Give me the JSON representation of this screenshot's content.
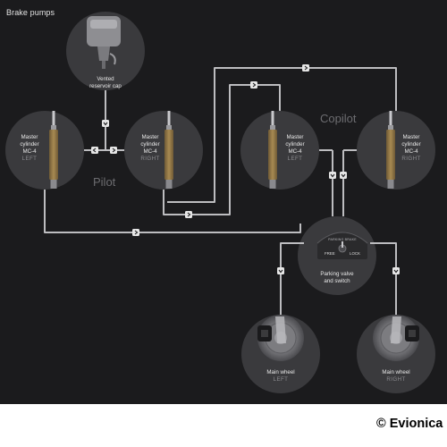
{
  "title": "Brake pumps",
  "groups": {
    "pilot": "Pilot",
    "copilot": "Copilot"
  },
  "reservoir": {
    "line1": "Vented",
    "line2": "reservoir cap"
  },
  "cylinders": [
    {
      "line1": "Master",
      "line2": "cylinder",
      "line3": "MC-4",
      "side": "LEFT"
    },
    {
      "line1": "Master",
      "line2": "cylinder",
      "line3": "MC-4",
      "side": "RIGHT"
    },
    {
      "line1": "Master",
      "line2": "cylinder",
      "line3": "MC-4",
      "side": "LEFT"
    },
    {
      "line1": "Master",
      "line2": "cylinder",
      "line3": "MC-4",
      "side": "RIGHT"
    }
  ],
  "parking": {
    "panel_title": "PARKING BRAKE",
    "free": "FREE",
    "lock": "LOCK",
    "line1": "Parking valve",
    "line2": "and switch"
  },
  "wheels": [
    {
      "line1": "Main wheel",
      "side": "LEFT"
    },
    {
      "line1": "Main wheel",
      "side": "RIGHT"
    }
  ],
  "copyright": {
    "symbol": "©",
    "text": "Evionica"
  },
  "colors": {
    "background": "#1b1b1d",
    "node_fill": "#3a3a3d",
    "pipe": "#bdbdc0",
    "cylinder_body": "#8a7246",
    "label_text": "#e8e8e8",
    "group_text": "#6c6c70"
  },
  "icons": {
    "flow_marker": "chevron-arrow-icon",
    "reservoir": "reservoir-icon",
    "cylinder": "master-cylinder-icon",
    "wheel": "brake-disc-icon"
  }
}
